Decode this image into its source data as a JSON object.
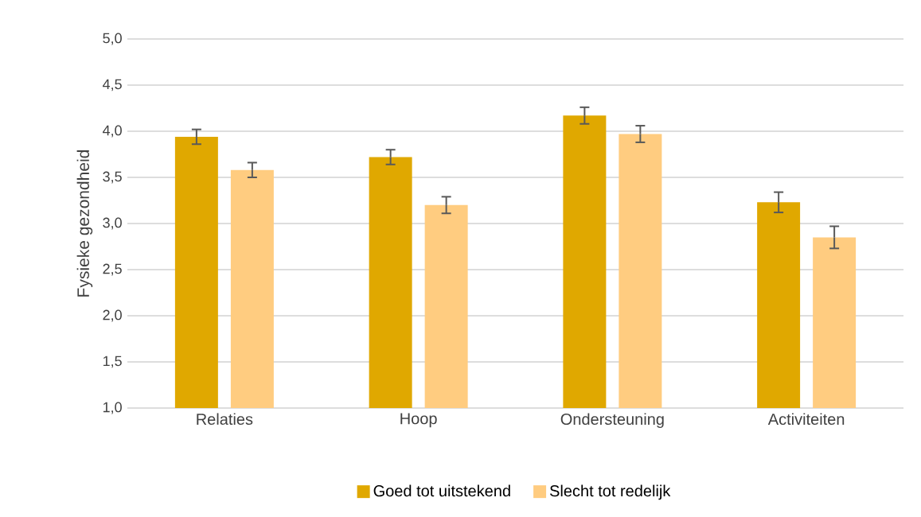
{
  "chart_data": {
    "type": "bar",
    "ylabel": "Fysieke gezondheid",
    "categories": [
      "Relaties",
      "Hoop",
      "Ondersteuning",
      "Activiteiten"
    ],
    "series": [
      {
        "name": "Goed tot uitstekend",
        "color": "#e0a800",
        "values": [
          3.94,
          3.72,
          4.17,
          3.23
        ],
        "errors": [
          0.08,
          0.08,
          0.09,
          0.11
        ]
      },
      {
        "name": "Slecht tot redelijk",
        "color": "#ffcc80",
        "values": [
          3.58,
          3.2,
          3.97,
          2.85
        ],
        "errors": [
          0.08,
          0.09,
          0.09,
          0.12
        ]
      }
    ],
    "ylim": [
      1,
      5
    ],
    "yticks": [
      {
        "value": 1,
        "label": "1,0"
      },
      {
        "value": 1.5,
        "label": "1,5"
      },
      {
        "value": 2,
        "label": "2,0"
      },
      {
        "value": 2.5,
        "label": "2,5"
      },
      {
        "value": 3,
        "label": "3,0"
      },
      {
        "value": 3.5,
        "label": "3,5"
      },
      {
        "value": 4,
        "label": "4,0"
      },
      {
        "value": 4.5,
        "label": "4,5"
      },
      {
        "value": 5,
        "label": "5,0"
      }
    ],
    "grid": "y",
    "legend": "bottom"
  }
}
